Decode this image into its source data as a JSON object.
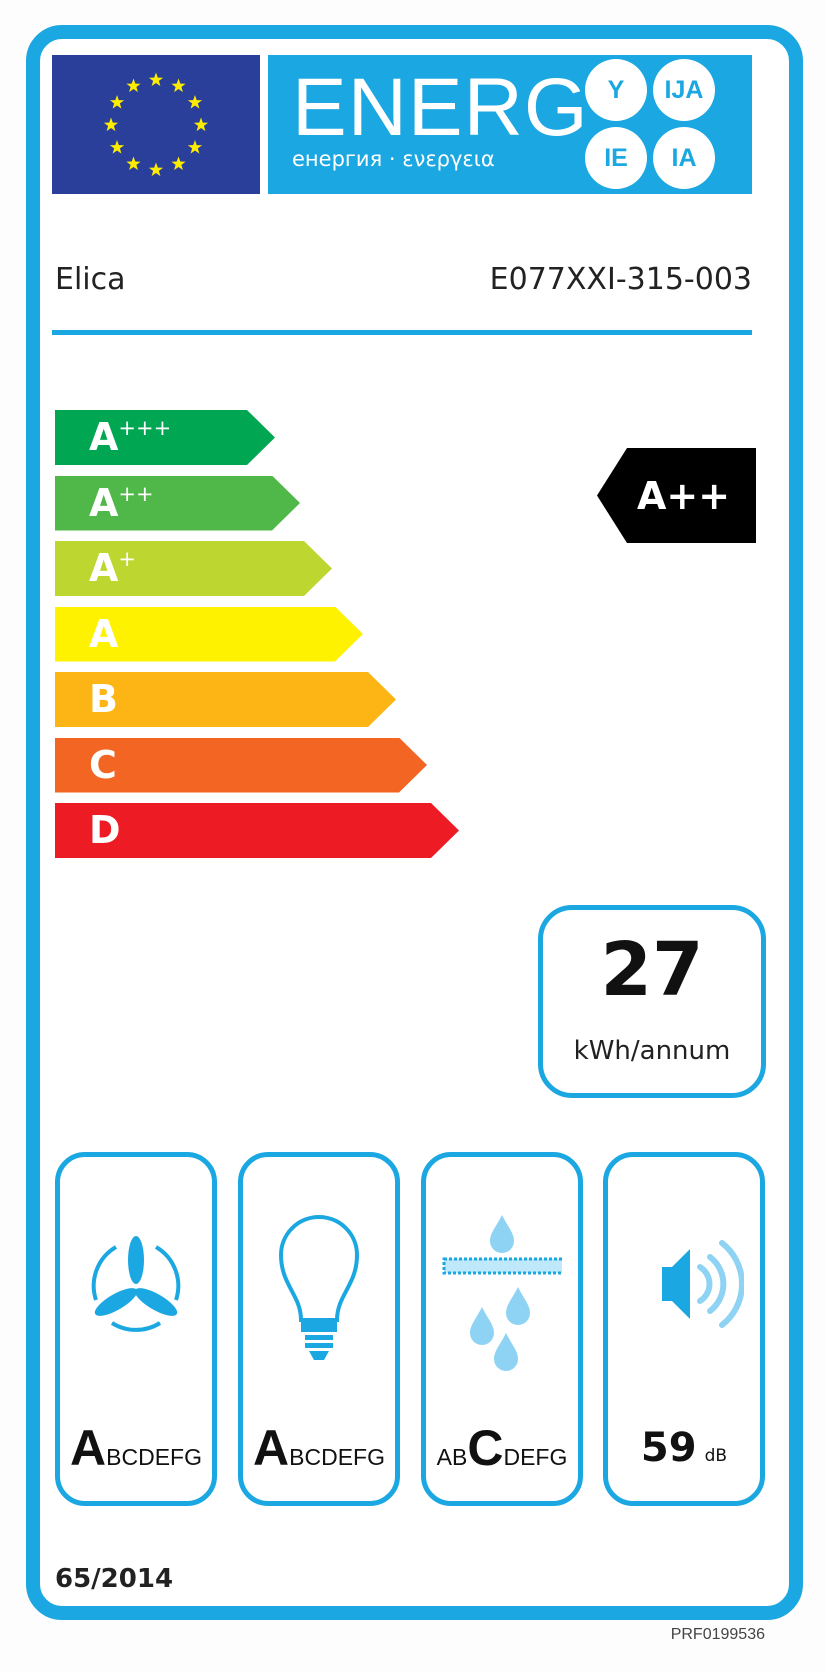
{
  "header": {
    "title": "ENERG",
    "subtitle": "енергия · ενεργεια",
    "badges": [
      "Y",
      "IJA",
      "IE",
      "IA"
    ],
    "flag_color": "#2a3f99",
    "accent_color": "#1ba7e1"
  },
  "supplier": "Elica",
  "model": "E077XXI-315-003",
  "classes": [
    {
      "letter": "A",
      "plus": "+++",
      "color": "#00a651"
    },
    {
      "letter": "A",
      "plus": "++",
      "color": "#50b848"
    },
    {
      "letter": "A",
      "plus": "+",
      "color": "#bed630"
    },
    {
      "letter": "A",
      "plus": "",
      "color": "#fff200"
    },
    {
      "letter": "B",
      "plus": "",
      "color": "#fcb514"
    },
    {
      "letter": "C",
      "plus": "",
      "color": "#f26522"
    },
    {
      "letter": "D",
      "plus": "",
      "color": "#ed1c24"
    }
  ],
  "rating": "A++",
  "energy": {
    "value": "27",
    "unit": "kWh/annum"
  },
  "sub_ratings": [
    {
      "icon": "fan-icon",
      "scale": "ABCDEFG",
      "selected": "A"
    },
    {
      "icon": "light-bulb-icon",
      "scale": "ABCDEFG",
      "selected": "A"
    },
    {
      "icon": "grease-filter-icon",
      "scale": "ABCDEFG",
      "selected": "C"
    }
  ],
  "noise": {
    "value": "59",
    "unit": "dB",
    "icon": "speaker-icon"
  },
  "regulation": "65/2014",
  "reference": "PRF0199536"
}
